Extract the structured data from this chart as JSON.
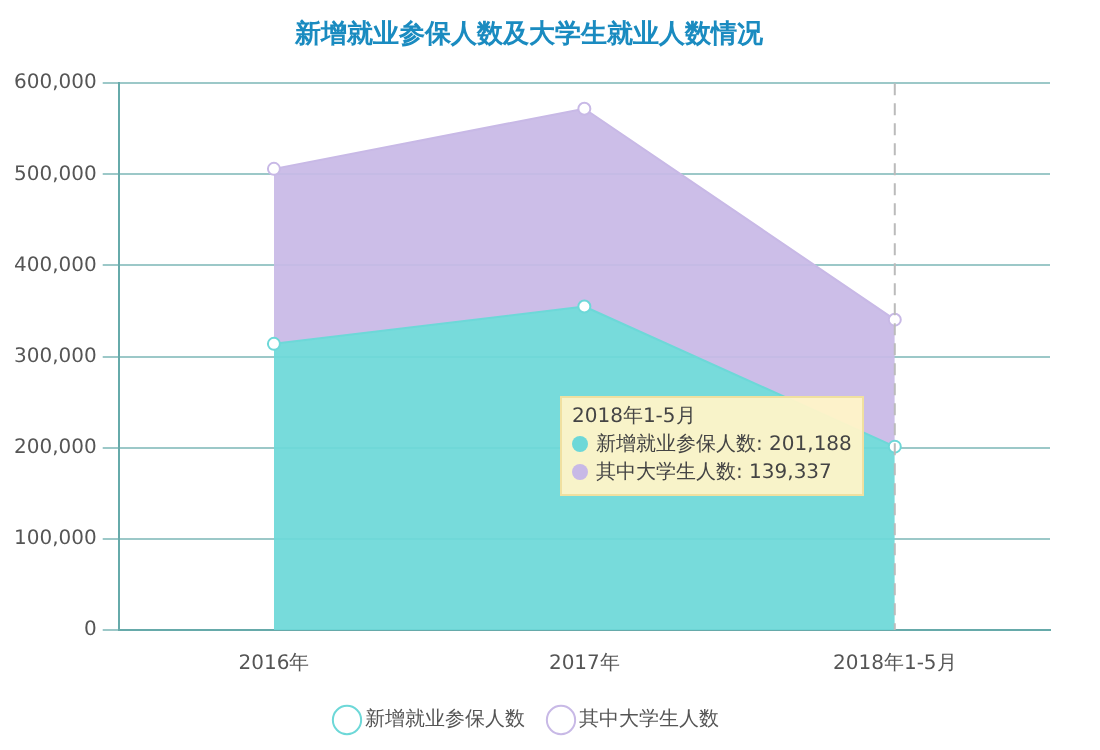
{
  "chart_data": {
    "type": "area",
    "title": "新增就业参保人数及大学生就业人数情况",
    "categories": [
      "2016年",
      "2017年",
      "2018年1-5月"
    ],
    "stacked": true,
    "series": [
      {
        "name": "新增就业参保人数",
        "color": "#6dd8d8",
        "values": [
          314000,
          355000,
          201188
        ]
      },
      {
        "name": "其中大学生人数",
        "color": "#c8b9e6",
        "values": [
          192000,
          217000,
          139337
        ]
      }
    ],
    "ylim": [
      0,
      600000
    ],
    "yticks": [
      {
        "value": 0,
        "label": "0"
      },
      {
        "value": 100000,
        "label": "100,000"
      },
      {
        "value": 200000,
        "label": "200,000"
      },
      {
        "value": 300000,
        "label": "300,000"
      },
      {
        "value": 400000,
        "label": "400,000"
      },
      {
        "value": 500000,
        "label": "500,000"
      },
      {
        "value": 600000,
        "label": "600,000"
      }
    ],
    "ref_lines": [
      {
        "axis": "x",
        "value": "2018年1-5月",
        "label": null,
        "line_style": "dashed",
        "color": "#bbbbbb"
      }
    ],
    "annotations": [
      "2018年1-5月",
      "新增就业参保人数: 201,188",
      "其中大学生人数: 139,337"
    ],
    "grid": "y",
    "legend": "bottom",
    "marker": "circle"
  }
}
